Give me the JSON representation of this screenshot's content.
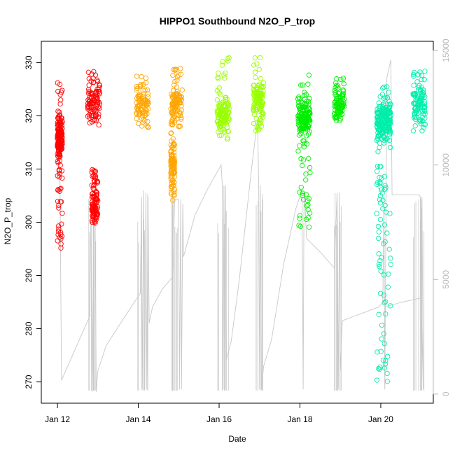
{
  "chart_data": {
    "type": "scatter",
    "title": "HIPPO1 Southbound N2O_P_trop",
    "xlabel": "Date",
    "ylabel": "N2O_P_trop",
    "x_tick_labels": [
      "Jan 12",
      "Jan 14",
      "Jan 16",
      "Jan 18",
      "Jan 20"
    ],
    "x_tick_days": [
      12,
      14,
      16,
      18,
      20
    ],
    "xlim": [
      11.6,
      21.3
    ],
    "ylim": [
      266,
      334
    ],
    "y_ticks": [
      270,
      280,
      290,
      300,
      310,
      320,
      330
    ],
    "y2lim": [
      -400,
      15400
    ],
    "y2_ticks": [
      0,
      5000,
      10000,
      15000
    ],
    "y2_color": "#b8b8b8",
    "grid": false,
    "legend": "none",
    "altitude_color": "#c8c8c8",
    "altitude_path": [
      [
        12.0,
        12100
      ],
      [
        12.05,
        12100
      ],
      [
        12.05,
        12050
      ],
      [
        12.1,
        600
      ],
      [
        12.2,
        1000
      ],
      [
        12.6,
        2600
      ],
      [
        12.8,
        3400
      ],
      [
        12.83,
        8200
      ],
      [
        12.86,
        100
      ],
      [
        12.9,
        8300
      ],
      [
        12.93,
        8000
      ],
      [
        12.96,
        100
      ],
      [
        13.0,
        1000
      ],
      [
        13.2,
        2100
      ],
      [
        13.6,
        3200
      ],
      [
        14.05,
        4400
      ],
      [
        14.08,
        8600
      ],
      [
        14.1,
        200
      ],
      [
        14.13,
        8900
      ],
      [
        14.16,
        200
      ],
      [
        14.19,
        8800
      ],
      [
        14.21,
        200
      ],
      [
        14.24,
        8600
      ],
      [
        14.27,
        3100
      ],
      [
        14.35,
        3800
      ],
      [
        14.6,
        4600
      ],
      [
        14.85,
        5100
      ],
      [
        14.9,
        8500
      ],
      [
        15.0,
        8500
      ],
      [
        15.02,
        200
      ],
      [
        15.05,
        8500
      ],
      [
        15.07,
        200
      ],
      [
        15.1,
        8300
      ],
      [
        15.12,
        6000
      ],
      [
        15.4,
        7800
      ],
      [
        15.7,
        8900
      ],
      [
        16.05,
        10000
      ],
      [
        16.08,
        9100
      ],
      [
        16.1,
        200
      ],
      [
        16.12,
        9100
      ],
      [
        16.14,
        200
      ],
      [
        16.16,
        9100
      ],
      [
        16.18,
        1500
      ],
      [
        16.3,
        2300
      ],
      [
        16.5,
        5000
      ],
      [
        16.8,
        9800
      ],
      [
        16.95,
        12000
      ],
      [
        16.98,
        9100
      ],
      [
        17.0,
        200
      ],
      [
        17.02,
        9100
      ],
      [
        17.05,
        200
      ],
      [
        17.1,
        1200
      ],
      [
        17.3,
        2400
      ],
      [
        17.6,
        5700
      ],
      [
        17.9,
        8100
      ],
      [
        18.05,
        8900
      ],
      [
        18.08,
        200
      ],
      [
        18.1,
        8800
      ],
      [
        18.13,
        8200
      ],
      [
        18.16,
        6800
      ],
      [
        18.5,
        6200
      ],
      [
        18.85,
        5500
      ],
      [
        18.92,
        8800
      ],
      [
        18.95,
        200
      ],
      [
        18.98,
        8800
      ],
      [
        19.0,
        1000
      ],
      [
        19.05,
        3200
      ],
      [
        19.5,
        3500
      ],
      [
        19.95,
        3800
      ],
      [
        20.05,
        4000
      ],
      [
        20.08,
        8600
      ],
      [
        20.1,
        200
      ],
      [
        20.13,
        8600
      ],
      [
        20.15,
        13800
      ],
      [
        20.2,
        14200
      ],
      [
        20.25,
        14600
      ],
      [
        20.28,
        8700
      ],
      [
        20.6,
        8700
      ],
      [
        20.95,
        8700
      ],
      [
        20.98,
        8600
      ],
      [
        21.0,
        200
      ],
      [
        21.02,
        8600
      ],
      [
        21.05,
        200
      ],
      [
        21.0,
        4200
      ],
      [
        20.5,
        4000
      ],
      [
        20.1,
        3800
      ]
    ],
    "series": [
      {
        "color": "#ff0000",
        "flights": [
          {
            "x": [
              12.0,
              12.12
            ],
            "lo": 295,
            "hi": 327,
            "mode": 316
          },
          {
            "x": [
              12.75,
              13.05
            ],
            "lo": 318,
            "hi": 328.5,
            "mode": 323
          },
          {
            "x": [
              12.85,
              13.0
            ],
            "lo": 299.5,
            "hi": 310,
            "mode": 303
          }
        ]
      },
      {
        "color": "#ffa500",
        "flights": [
          {
            "x": [
              13.95,
              14.25
            ],
            "lo": 317.5,
            "hi": 327.5,
            "mode": 322
          },
          {
            "x": [
              14.8,
              15.1
            ],
            "lo": 317,
            "hi": 329,
            "mode": 322
          },
          {
            "x": [
              14.8,
              14.9
            ],
            "lo": 304,
            "hi": 317,
            "mode": 311
          }
        ]
      },
      {
        "color": "#99ff00",
        "flights": [
          {
            "x": [
              15.95,
              16.25
            ],
            "lo": 315,
            "hi": 331,
            "mode": 320
          },
          {
            "x": [
              16.85,
              17.1
            ],
            "lo": 317,
            "hi": 331.5,
            "mode": 323
          }
        ]
      },
      {
        "color": "#00ee00",
        "flights": [
          {
            "x": [
              17.95,
              18.25
            ],
            "lo": 298,
            "hi": 328,
            "mode": 320
          },
          {
            "x": [
              18.85,
              19.1
            ],
            "lo": 319,
            "hi": 327.5,
            "mode": 322
          }
        ]
      },
      {
        "color": "#00eeaa",
        "flights": [
          {
            "x": [
              19.9,
              20.25
            ],
            "lo": 269,
            "hi": 326,
            "mode": 319
          },
          {
            "x": [
              20.8,
              21.1
            ],
            "lo": 317,
            "hi": 329,
            "mode": 322
          }
        ]
      }
    ]
  }
}
